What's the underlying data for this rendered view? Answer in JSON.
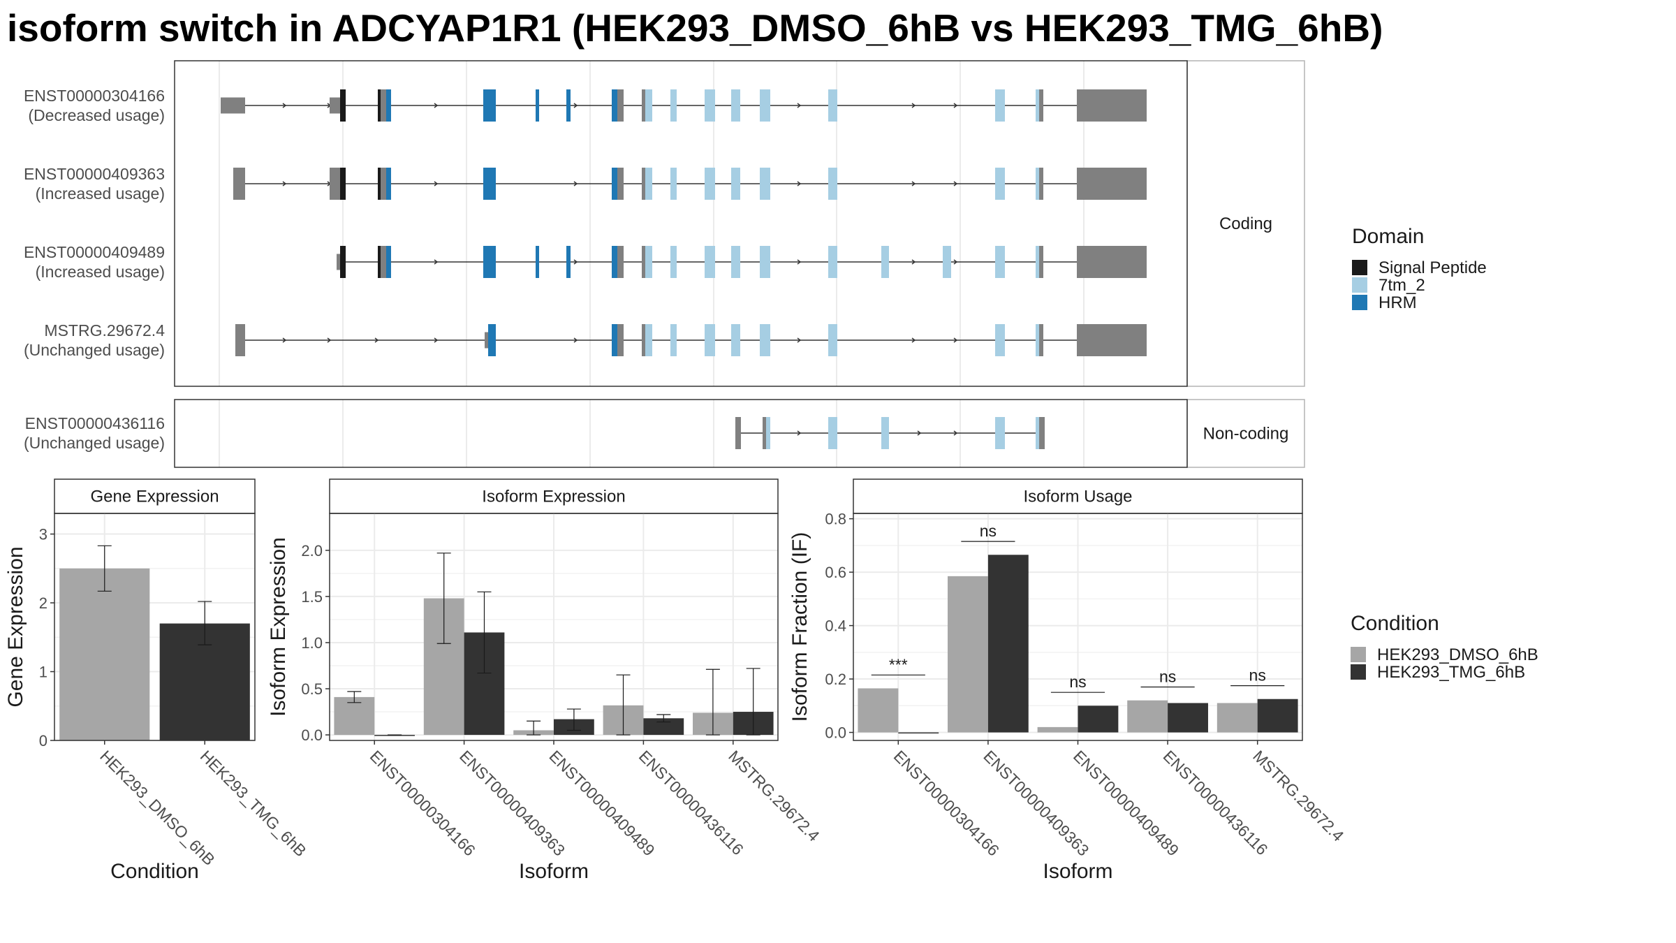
{
  "title": "isoform switch in ADCYAP1R1 (HEK293_DMSO_6hB vs HEK293_TMG_6hB)",
  "colors": {
    "signal_peptide": "#1a1a1a",
    "7tm_2": "#a6cee3",
    "hrm": "#1f78b4",
    "utr": "#808080",
    "dmso": "#a6a6a6",
    "tmg": "#333333"
  },
  "structure": {
    "facets": [
      "Coding",
      "Non-coding"
    ],
    "isoforms": [
      {
        "id": "ENST00000304166",
        "usage": "(Decreased usage)",
        "group": "Coding"
      },
      {
        "id": "ENST00000409363",
        "usage": "(Increased usage)",
        "group": "Coding"
      },
      {
        "id": "ENST00000409489",
        "usage": "(Increased usage)",
        "group": "Coding"
      },
      {
        "id": "MSTRG.29672.4",
        "usage": "(Unchanged usage)",
        "group": "Coding"
      },
      {
        "id": "ENST00000436116",
        "usage": "(Unchanged usage)",
        "group": "Non-coding"
      }
    ]
  },
  "legends": {
    "domain_title": "Domain",
    "domain_items": [
      {
        "label": "Signal Peptide",
        "color": "#1a1a1a"
      },
      {
        "label": "7tm_2",
        "color": "#a6cee3"
      },
      {
        "label": "HRM",
        "color": "#1f78b4"
      }
    ],
    "condition_title": "Condition",
    "condition_items": [
      {
        "label": "HEK293_DMSO_6hB",
        "color": "#a6a6a6"
      },
      {
        "label": "HEK293_TMG_6hB",
        "color": "#333333"
      }
    ]
  },
  "chart_data": [
    {
      "type": "bar",
      "title": "Gene Expression",
      "xlabel": "Condition",
      "ylabel": "Gene Expression",
      "ylim": [
        0,
        3.3
      ],
      "yticks": [
        0,
        1,
        2,
        3
      ],
      "categories": [
        "HEK293_DMSO_6hB",
        "HEK293_TMG_6hB"
      ],
      "values": [
        2.5,
        1.7
      ],
      "error": [
        [
          2.17,
          2.83
        ],
        [
          1.39,
          2.02
        ]
      ],
      "grid": true
    },
    {
      "type": "bar",
      "title": "Isoform Expression",
      "xlabel": "Isoform",
      "ylabel": "Isoform Expression",
      "ylim": [
        -0.06,
        2.4
      ],
      "yticks": [
        0.0,
        0.5,
        1.0,
        1.5,
        2.0
      ],
      "categories": [
        "ENST00000304166",
        "ENST00000409363",
        "ENST00000409489",
        "ENST00000436116",
        "MSTRG.29672.4"
      ],
      "series": [
        {
          "name": "HEK293_DMSO_6hB",
          "values": [
            0.41,
            1.48,
            0.05,
            0.32,
            0.24
          ],
          "error": [
            [
              0.35,
              0.47
            ],
            [
              0.99,
              1.97
            ],
            [
              0.0,
              0.15
            ],
            [
              0.0,
              0.65
            ],
            [
              0.0,
              0.71
            ]
          ]
        },
        {
          "name": "HEK293_TMG_6hB",
          "values": [
            0.0,
            1.11,
            0.17,
            0.18,
            0.25
          ],
          "error": [
            [
              0.0,
              0.0
            ],
            [
              0.67,
              1.55
            ],
            [
              0.05,
              0.28
            ],
            [
              0.14,
              0.22
            ],
            [
              0.0,
              0.72
            ]
          ]
        }
      ],
      "grid": true
    },
    {
      "type": "bar",
      "title": "Isoform Usage",
      "xlabel": "Isoform",
      "ylabel": "Isoform Fraction (IF)",
      "ylim": [
        -0.03,
        0.82
      ],
      "yticks": [
        0.0,
        0.2,
        0.4,
        0.6,
        0.8
      ],
      "categories": [
        "ENST00000304166",
        "ENST00000409363",
        "ENST00000409489",
        "ENST00000436116",
        "MSTRG.29672.4"
      ],
      "series": [
        {
          "name": "HEK293_DMSO_6hB",
          "values": [
            0.165,
            0.585,
            0.02,
            0.12,
            0.11
          ]
        },
        {
          "name": "HEK293_TMG_6hB",
          "values": [
            0.0,
            0.665,
            0.1,
            0.11,
            0.125
          ]
        }
      ],
      "significance": [
        "***",
        "ns",
        "ns",
        "ns",
        "ns"
      ],
      "grid": true
    }
  ]
}
